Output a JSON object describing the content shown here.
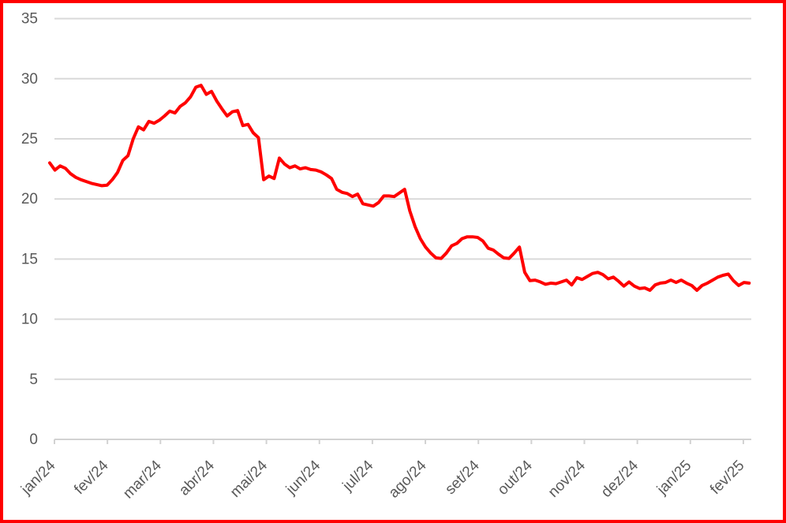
{
  "chart_data": {
    "type": "line",
    "title": "",
    "xlabel": "",
    "ylabel": "",
    "grid": "horizontal",
    "legend": "none",
    "ylim": [
      0,
      35
    ],
    "y_ticks": [
      0,
      5,
      10,
      15,
      20,
      25,
      30,
      35
    ],
    "x_tick_labels": [
      "jan/24",
      "fev/24",
      "mar/24",
      "abr/24",
      "mai/24",
      "jun/24",
      "jul/24",
      "ago/24",
      "set/24",
      "out/24",
      "nov/24",
      "dez/24",
      "jan/25",
      "fev/25"
    ],
    "series": [
      {
        "name": "daily-price",
        "color": "#ff0000",
        "x_start_months": -0.09,
        "x_step_months": 0.0985,
        "values": [
          23.0,
          22.4,
          22.75,
          22.55,
          22.1,
          21.8,
          21.6,
          21.45,
          21.3,
          21.2,
          21.1,
          21.15,
          21.6,
          22.2,
          23.2,
          23.6,
          25.0,
          26.0,
          25.75,
          26.45,
          26.3,
          26.55,
          26.9,
          27.3,
          27.15,
          27.7,
          28.0,
          28.5,
          29.3,
          29.45,
          28.7,
          28.95,
          28.15,
          27.5,
          26.9,
          27.25,
          27.35,
          26.1,
          26.2,
          25.5,
          25.1,
          21.6,
          21.9,
          21.7,
          23.4,
          22.9,
          22.6,
          22.75,
          22.5,
          22.6,
          22.45,
          22.4,
          22.25,
          22.0,
          21.7,
          20.8,
          20.55,
          20.45,
          20.2,
          20.4,
          19.6,
          19.5,
          19.4,
          19.7,
          20.25,
          20.25,
          20.2,
          20.5,
          20.8,
          19.0,
          17.7,
          16.7,
          16.0,
          15.5,
          15.1,
          15.05,
          15.5,
          16.1,
          16.3,
          16.7,
          16.85,
          16.85,
          16.8,
          16.5,
          15.9,
          15.75,
          15.4,
          15.1,
          15.05,
          15.5,
          16.0,
          13.9,
          13.2,
          13.25,
          13.1,
          12.9,
          13.0,
          12.95,
          13.1,
          13.25,
          12.85,
          13.45,
          13.3,
          13.55,
          13.8,
          13.9,
          13.7,
          13.35,
          13.5,
          13.15,
          12.75,
          13.1,
          12.75,
          12.55,
          12.6,
          12.4,
          12.85,
          13.0,
          13.05,
          13.25,
          13.05,
          13.25,
          13.0,
          12.8,
          12.4,
          12.8,
          13.0,
          13.25,
          13.5,
          13.65,
          13.75,
          13.2,
          12.8,
          13.05,
          13.0
        ]
      }
    ]
  },
  "colors": {
    "background": "#ffffff",
    "border": "#ff0000",
    "line": "#ff0000",
    "gridline": "#d9d9d9",
    "axis": "#d2d2d2",
    "tick_label": "#595959"
  }
}
